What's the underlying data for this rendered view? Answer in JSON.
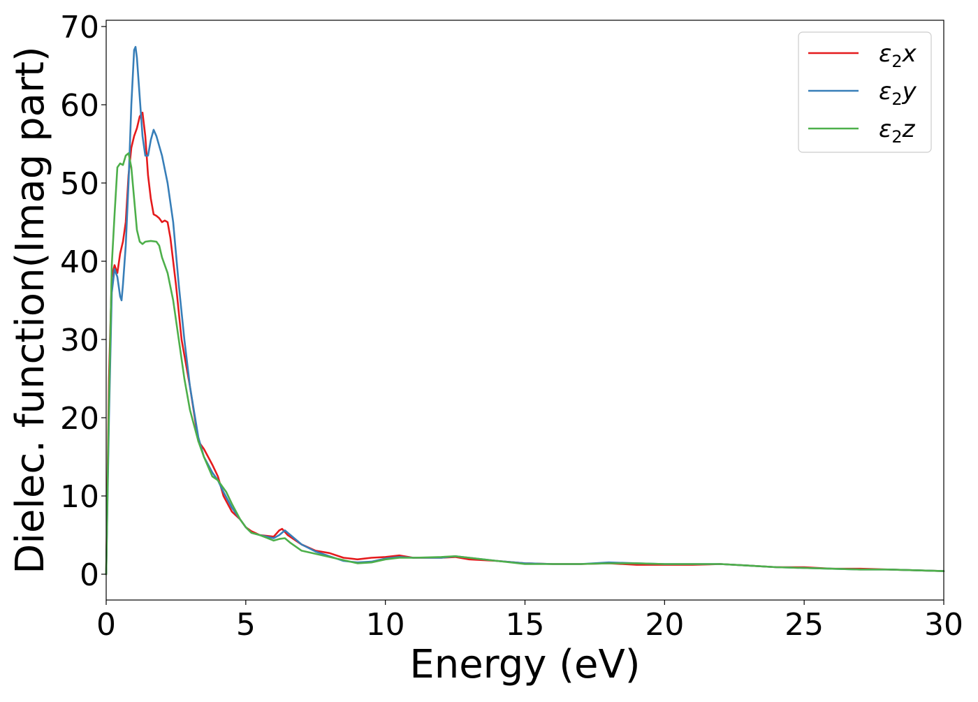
{
  "chart_data": {
    "type": "line",
    "title": "",
    "xlabel": "Energy (eV)",
    "ylabel": "Dielec. function(Imag part)",
    "xlim": [
      0,
      30
    ],
    "ylim": [
      -3.3,
      70.8
    ],
    "x_ticks": [
      "0",
      "5",
      "10",
      "15",
      "20",
      "25",
      "30"
    ],
    "y_ticks": [
      "0",
      "10",
      "20",
      "30",
      "40",
      "50",
      "60",
      "70"
    ],
    "grid": false,
    "legend_position": "top-right",
    "series": [
      {
        "name": "ε₂x",
        "legend_base": "ε",
        "legend_sub": "2",
        "legend_suffix": "x",
        "color": "#e41a1c",
        "points": [
          [
            0,
            0
          ],
          [
            0.1,
            25
          ],
          [
            0.2,
            38
          ],
          [
            0.3,
            39.5
          ],
          [
            0.4,
            38.5
          ],
          [
            0.5,
            41
          ],
          [
            0.6,
            42.5
          ],
          [
            0.7,
            45
          ],
          [
            0.8,
            51
          ],
          [
            0.9,
            54.5
          ],
          [
            1.0,
            56
          ],
          [
            1.1,
            57
          ],
          [
            1.2,
            58.5
          ],
          [
            1.3,
            59
          ],
          [
            1.4,
            56
          ],
          [
            1.5,
            51
          ],
          [
            1.6,
            48
          ],
          [
            1.7,
            46
          ],
          [
            1.8,
            45.8
          ],
          [
            1.9,
            45.5
          ],
          [
            2.0,
            45
          ],
          [
            2.1,
            45.2
          ],
          [
            2.2,
            45
          ],
          [
            2.3,
            43
          ],
          [
            2.5,
            37
          ],
          [
            2.7,
            30
          ],
          [
            3.0,
            24
          ],
          [
            3.3,
            17
          ],
          [
            3.5,
            16
          ],
          [
            3.8,
            14
          ],
          [
            4.0,
            12.5
          ],
          [
            4.2,
            10
          ],
          [
            4.5,
            8
          ],
          [
            4.8,
            7
          ],
          [
            5.0,
            6
          ],
          [
            5.2,
            5.5
          ],
          [
            5.5,
            5
          ],
          [
            6.0,
            4.8
          ],
          [
            6.2,
            5.6
          ],
          [
            6.3,
            5.8
          ],
          [
            6.5,
            5
          ],
          [
            7.0,
            3.8
          ],
          [
            7.5,
            3
          ],
          [
            8.0,
            2.7
          ],
          [
            8.5,
            2.1
          ],
          [
            9.0,
            1.9
          ],
          [
            9.5,
            2.1
          ],
          [
            10.0,
            2.2
          ],
          [
            10.5,
            2.4
          ],
          [
            11.0,
            2.1
          ],
          [
            12.0,
            2.1
          ],
          [
            12.5,
            2.2
          ],
          [
            13.0,
            1.9
          ],
          [
            14.0,
            1.7
          ],
          [
            15.0,
            1.4
          ],
          [
            16.0,
            1.3
          ],
          [
            17.0,
            1.3
          ],
          [
            18.0,
            1.4
          ],
          [
            19.0,
            1.2
          ],
          [
            20.0,
            1.2
          ],
          [
            21.0,
            1.2
          ],
          [
            22.0,
            1.3
          ],
          [
            23.0,
            1.1
          ],
          [
            24.0,
            0.9
          ],
          [
            25.0,
            0.9
          ],
          [
            26.0,
            0.7
          ],
          [
            27.0,
            0.7
          ],
          [
            28.0,
            0.6
          ],
          [
            29.0,
            0.5
          ],
          [
            30.0,
            0.4
          ]
        ]
      },
      {
        "name": "ε₂y",
        "legend_base": "ε",
        "legend_sub": "2",
        "legend_suffix": "y",
        "color": "#377eb8",
        "points": [
          [
            0,
            0
          ],
          [
            0.1,
            20
          ],
          [
            0.2,
            36
          ],
          [
            0.3,
            39
          ],
          [
            0.4,
            38
          ],
          [
            0.5,
            35.5
          ],
          [
            0.55,
            35
          ],
          [
            0.6,
            37
          ],
          [
            0.7,
            42
          ],
          [
            0.8,
            50
          ],
          [
            0.9,
            60
          ],
          [
            1.0,
            67
          ],
          [
            1.05,
            67.4
          ],
          [
            1.1,
            66
          ],
          [
            1.2,
            61
          ],
          [
            1.3,
            56
          ],
          [
            1.4,
            53.5
          ],
          [
            1.5,
            53.5
          ],
          [
            1.6,
            55.5
          ],
          [
            1.7,
            56.8
          ],
          [
            1.8,
            56
          ],
          [
            2.0,
            53.5
          ],
          [
            2.2,
            50
          ],
          [
            2.4,
            45
          ],
          [
            2.6,
            37
          ],
          [
            2.8,
            30
          ],
          [
            3.0,
            24
          ],
          [
            3.3,
            17.5
          ],
          [
            3.5,
            15
          ],
          [
            3.8,
            13
          ],
          [
            4.0,
            12
          ],
          [
            4.2,
            10.5
          ],
          [
            4.5,
            8.5
          ],
          [
            4.8,
            7
          ],
          [
            5.0,
            6
          ],
          [
            5.2,
            5.3
          ],
          [
            5.5,
            5
          ],
          [
            6.0,
            4.6
          ],
          [
            6.2,
            5
          ],
          [
            6.4,
            5.6
          ],
          [
            6.6,
            5
          ],
          [
            7.0,
            3.8
          ],
          [
            7.5,
            2.9
          ],
          [
            8.0,
            2.3
          ],
          [
            8.5,
            1.7
          ],
          [
            9.0,
            1.5
          ],
          [
            9.5,
            1.6
          ],
          [
            10.0,
            2
          ],
          [
            10.5,
            2.2
          ],
          [
            11.0,
            2.1
          ],
          [
            12.0,
            2.1
          ],
          [
            12.5,
            2.3
          ],
          [
            13.0,
            2.1
          ],
          [
            14.0,
            1.7
          ],
          [
            15.0,
            1.4
          ],
          [
            16.0,
            1.3
          ],
          [
            17.0,
            1.3
          ],
          [
            18.0,
            1.5
          ],
          [
            19.0,
            1.4
          ],
          [
            20.0,
            1.3
          ],
          [
            21.0,
            1.3
          ],
          [
            22.0,
            1.3
          ],
          [
            23.0,
            1.1
          ],
          [
            24.0,
            0.9
          ],
          [
            25.0,
            0.8
          ],
          [
            26.0,
            0.7
          ],
          [
            27.0,
            0.6
          ],
          [
            28.0,
            0.6
          ],
          [
            29.0,
            0.5
          ],
          [
            30.0,
            0.4
          ]
        ]
      },
      {
        "name": "ε₂z",
        "legend_base": "ε",
        "legend_sub": "2",
        "legend_suffix": "z",
        "color": "#4daf4a",
        "points": [
          [
            0,
            0
          ],
          [
            0.1,
            22
          ],
          [
            0.2,
            39.5
          ],
          [
            0.3,
            46
          ],
          [
            0.4,
            52
          ],
          [
            0.5,
            52.5
          ],
          [
            0.6,
            52.3
          ],
          [
            0.7,
            53.5
          ],
          [
            0.8,
            53.8
          ],
          [
            0.9,
            52
          ],
          [
            1.0,
            48
          ],
          [
            1.1,
            44
          ],
          [
            1.2,
            42.5
          ],
          [
            1.3,
            42.2
          ],
          [
            1.4,
            42.5
          ],
          [
            1.6,
            42.6
          ],
          [
            1.8,
            42.5
          ],
          [
            1.9,
            42
          ],
          [
            2.0,
            40.5
          ],
          [
            2.2,
            38.5
          ],
          [
            2.4,
            35
          ],
          [
            2.6,
            30
          ],
          [
            2.8,
            25
          ],
          [
            3.0,
            21
          ],
          [
            3.3,
            17
          ],
          [
            3.5,
            15
          ],
          [
            3.8,
            12.5
          ],
          [
            4.0,
            12
          ],
          [
            4.3,
            10.5
          ],
          [
            4.5,
            9
          ],
          [
            4.8,
            7
          ],
          [
            5.0,
            6
          ],
          [
            5.2,
            5.3
          ],
          [
            5.5,
            5
          ],
          [
            6.0,
            4.3
          ],
          [
            6.2,
            4.5
          ],
          [
            6.4,
            4.6
          ],
          [
            6.6,
            4
          ],
          [
            7.0,
            3
          ],
          [
            7.5,
            2.6
          ],
          [
            8.0,
            2.2
          ],
          [
            8.5,
            1.8
          ],
          [
            9.0,
            1.4
          ],
          [
            9.5,
            1.5
          ],
          [
            10.0,
            1.9
          ],
          [
            10.5,
            2.1
          ],
          [
            11.0,
            2.1
          ],
          [
            12.0,
            2.2
          ],
          [
            12.5,
            2.3
          ],
          [
            13.0,
            2.1
          ],
          [
            14.0,
            1.7
          ],
          [
            15.0,
            1.3
          ],
          [
            16.0,
            1.3
          ],
          [
            17.0,
            1.3
          ],
          [
            18.0,
            1.4
          ],
          [
            19.0,
            1.4
          ],
          [
            20.0,
            1.3
          ],
          [
            21.0,
            1.3
          ],
          [
            22.0,
            1.3
          ],
          [
            23.0,
            1.1
          ],
          [
            24.0,
            0.9
          ],
          [
            25.0,
            0.8
          ],
          [
            26.0,
            0.7
          ],
          [
            27.0,
            0.6
          ],
          [
            28.0,
            0.6
          ],
          [
            29.0,
            0.5
          ],
          [
            30.0,
            0.4
          ]
        ]
      }
    ]
  }
}
